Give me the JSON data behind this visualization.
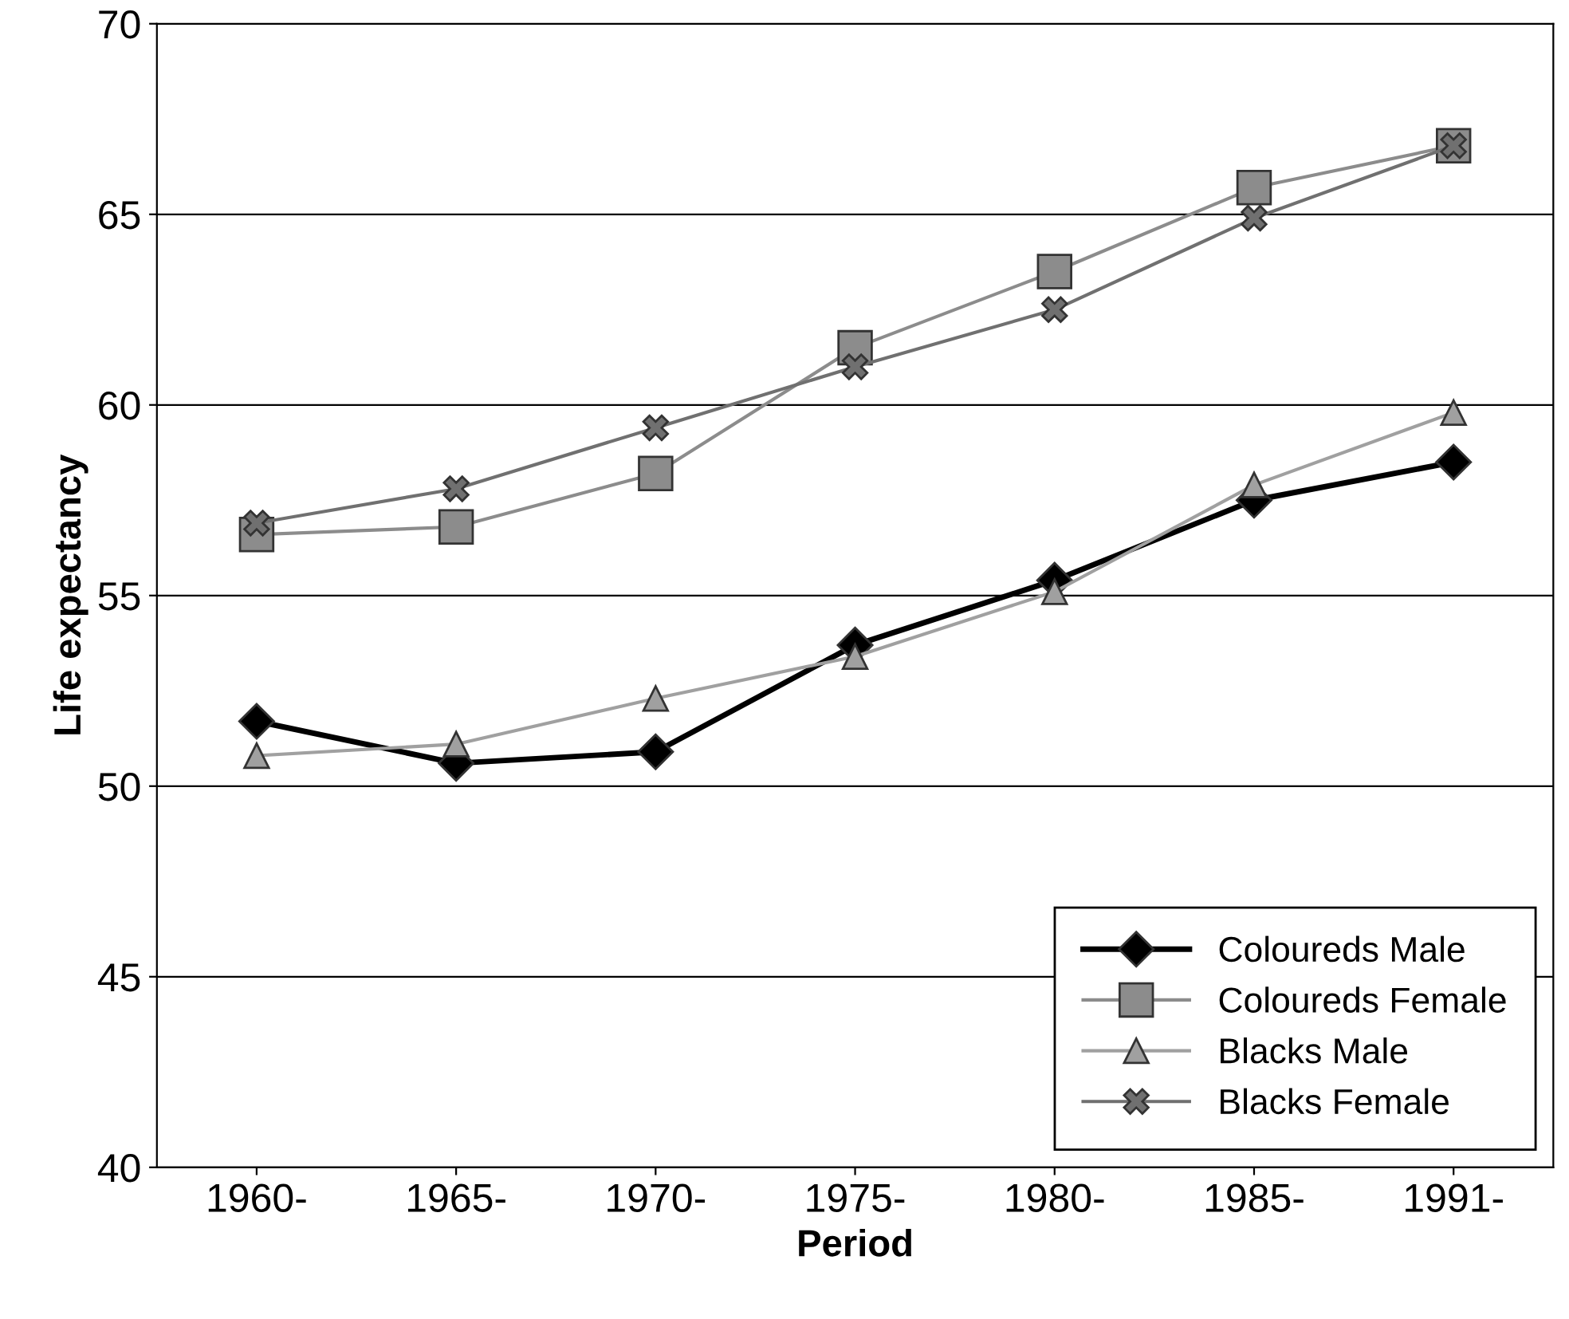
{
  "chart_data": {
    "type": "line",
    "xlabel": "Period",
    "ylabel": "Life expectancy",
    "categories": [
      "1960-",
      "1965-",
      "1970-",
      "1975-",
      "1980-",
      "1985-",
      "1991-"
    ],
    "series": [
      {
        "name": "Coloureds Male",
        "color": "#000000",
        "marker": "diamond",
        "values": [
          51.7,
          50.6,
          50.9,
          53.7,
          55.4,
          57.5,
          58.5
        ]
      },
      {
        "name": "Coloureds Female",
        "color": "#8c8c8c",
        "marker": "square",
        "values": [
          56.6,
          56.8,
          58.2,
          61.5,
          63.5,
          65.7,
          66.8
        ]
      },
      {
        "name": "Blacks Male",
        "color": "#a0a0a0",
        "marker": "triangle",
        "values": [
          50.8,
          51.1,
          52.3,
          53.4,
          55.1,
          57.9,
          59.8
        ]
      },
      {
        "name": "Blacks Female",
        "color": "#707070",
        "marker": "cross",
        "values": [
          56.9,
          57.8,
          59.4,
          61.0,
          62.5,
          64.9,
          66.8
        ]
      }
    ],
    "ylim": [
      40,
      70
    ],
    "yticks": [
      40,
      45,
      50,
      55,
      60,
      65,
      70
    ],
    "grid": "y",
    "legend": "bottom right"
  }
}
